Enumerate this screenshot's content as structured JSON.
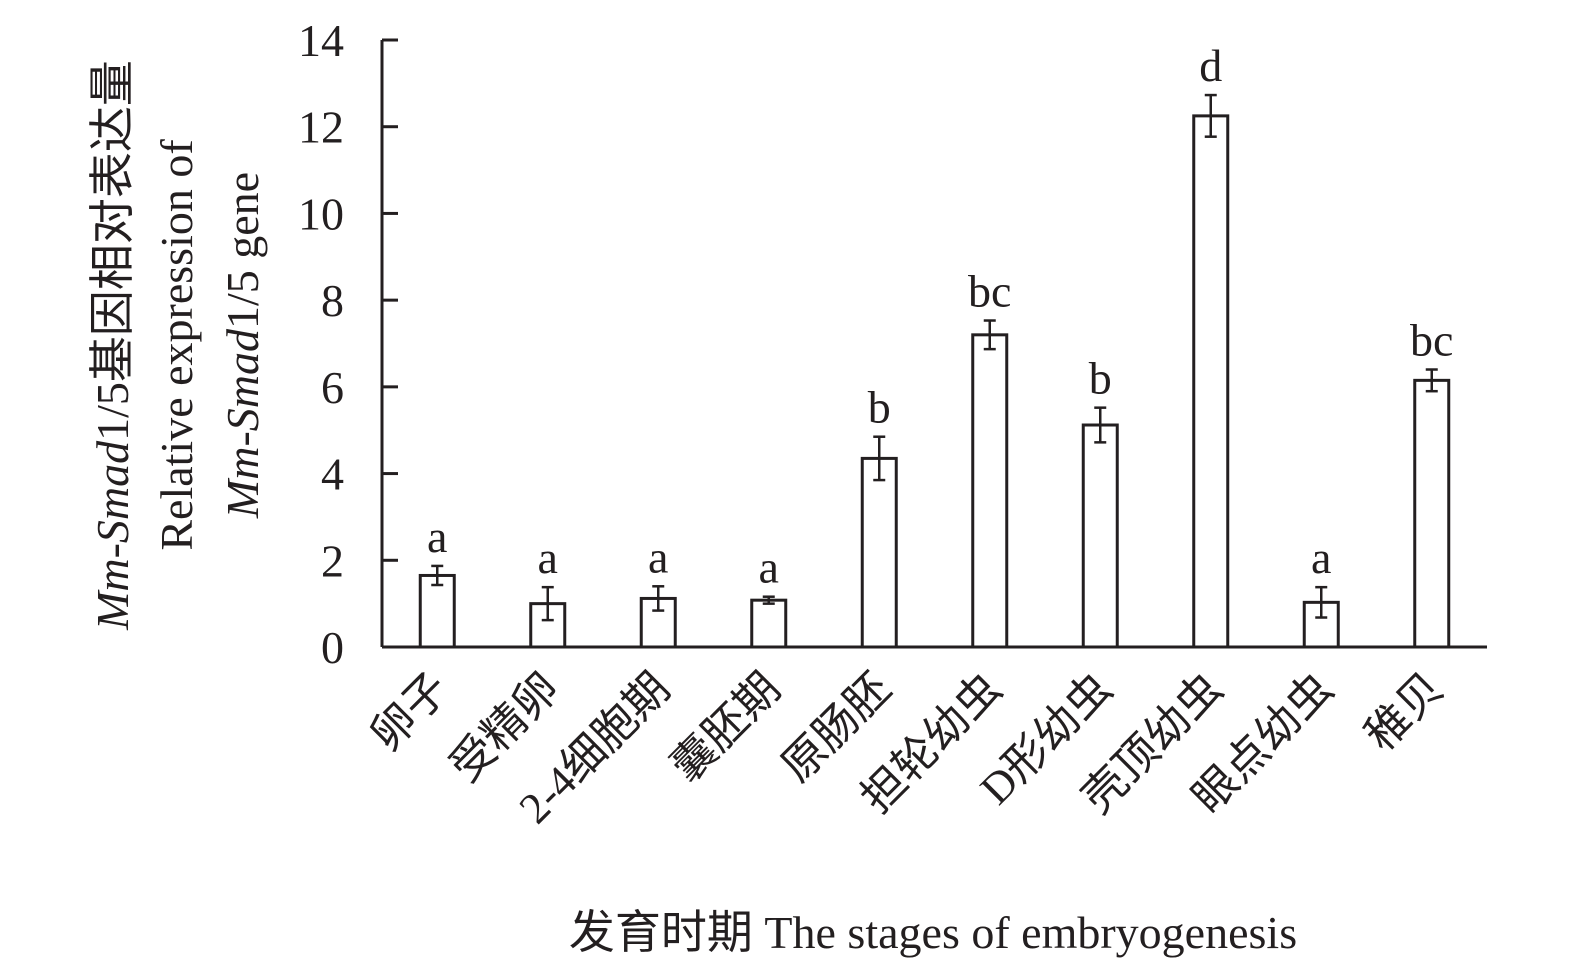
{
  "chart_data": {
    "type": "bar",
    "categories": [
      "卵子",
      "受精卵",
      "2-4细胞期",
      "囊胚期",
      "原肠胚",
      "担轮幼虫",
      "D形幼虫",
      "壳顶幼虫",
      "眼点幼虫",
      "稚贝"
    ],
    "values": [
      1.65,
      1.0,
      1.12,
      1.08,
      4.35,
      7.2,
      5.12,
      12.25,
      1.03,
      6.15
    ],
    "errors": [
      0.22,
      0.38,
      0.28,
      0.08,
      0.5,
      0.33,
      0.4,
      0.48,
      0.35,
      0.25
    ],
    "significance": [
      "a",
      "a",
      "a",
      "a",
      "b",
      "bc",
      "b",
      "d",
      "a",
      "bc"
    ],
    "ylim": [
      0,
      14
    ],
    "yticks": [
      "0",
      "2",
      "4",
      "6",
      "8",
      "10",
      "12",
      "14"
    ],
    "xlabel": "发育时期 The stages of embryogenesis",
    "ylabel": {
      "line1_italic": "Mm-Smad",
      "line1_rest": "1/5基因相对表达量",
      "line2": "Relative expression of",
      "line3_italic": "Mm-Smad",
      "line3_rest": "1/5 gene"
    },
    "grid": false,
    "legend": "none",
    "bar_fill": "#ffffff",
    "line_color": "#231f20"
  }
}
